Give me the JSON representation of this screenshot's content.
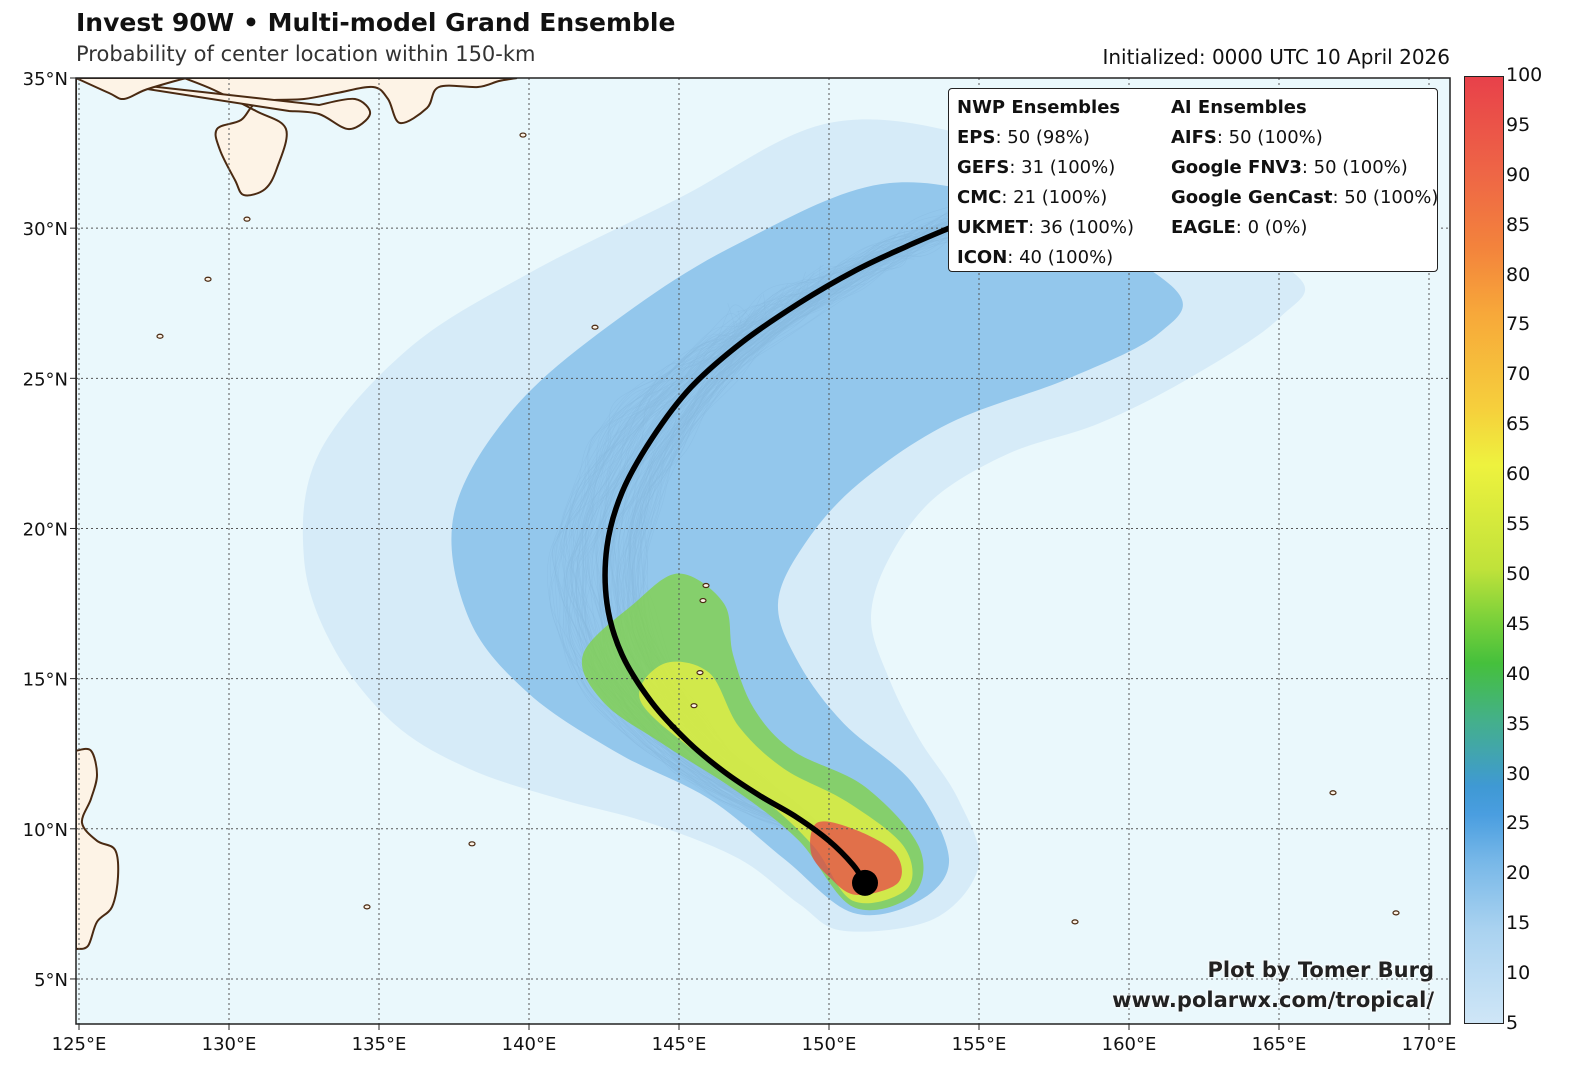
{
  "title": "Invest 90W • Multi-model Grand Ensemble",
  "subtitle": "Probability of center location within 150-km",
  "initialized": "Initialized: 0000 UTC 10 April 2026",
  "axes": {
    "lon_ticks": [
      "125°E",
      "130°E",
      "135°E",
      "140°E",
      "145°E",
      "150°E",
      "155°E",
      "160°E",
      "165°E",
      "170°E"
    ],
    "lat_ticks": [
      "35°N",
      "30°N",
      "25°N",
      "20°N",
      "15°N",
      "10°N",
      "5°N"
    ],
    "lon_range": [
      124.9,
      170.7
    ],
    "lat_range": [
      3.5,
      35.0
    ]
  },
  "legend": {
    "nwp_header": "NWP Ensembles",
    "ai_header": "AI Ensembles",
    "nwp": [
      {
        "model": "EPS",
        "detail": ": 50 (98%)"
      },
      {
        "model": "GEFS",
        "detail": ": 31 (100%)"
      },
      {
        "model": "CMC",
        "detail": ": 21 (100%)"
      },
      {
        "model": "UKMET",
        "detail": ": 36 (100%)"
      },
      {
        "model": "ICON",
        "detail": ": 40 (100%)"
      }
    ],
    "ai": [
      {
        "model": "AIFS",
        "detail": ": 50 (100%)"
      },
      {
        "model": "Google FNV3",
        "detail": ": 50 (100%)"
      },
      {
        "model": "Google GenCast",
        "detail": ": 50 (100%)"
      },
      {
        "model": "EAGLE",
        "detail": ": 0 (0%)"
      }
    ]
  },
  "credit": {
    "line1": "Plot by Tomer Burg",
    "line2": "www.polarwx.com/tropical/"
  },
  "colorbar": {
    "ticks": [
      "100",
      "95",
      "90",
      "85",
      "80",
      "75",
      "70",
      "65",
      "60",
      "55",
      "50",
      "45",
      "40",
      "35",
      "30",
      "25",
      "20",
      "15",
      "10",
      "5"
    ],
    "range": [
      5,
      100
    ]
  },
  "colors": {
    "ocean": "#eaf8fc",
    "land": "#fdf3e6",
    "coast": "#4a2a12",
    "track": "#000000"
  },
  "map_data": {
    "mean_track": [
      [
        151.2,
        8.2
      ],
      [
        150.8,
        8.8
      ],
      [
        150.0,
        9.6
      ],
      [
        148.9,
        10.4
      ],
      [
        147.7,
        11.1
      ],
      [
        146.5,
        11.9
      ],
      [
        145.3,
        12.9
      ],
      [
        144.1,
        14.2
      ],
      [
        143.1,
        15.8
      ],
      [
        142.6,
        17.5
      ],
      [
        142.6,
        19.4
      ],
      [
        143.1,
        21.2
      ],
      [
        144.1,
        23.0
      ],
      [
        145.4,
        24.7
      ],
      [
        147.1,
        26.2
      ],
      [
        149.0,
        27.5
      ],
      [
        150.9,
        28.6
      ],
      [
        152.6,
        29.4
      ],
      [
        154.0,
        30.0
      ]
    ],
    "probability_bands": [
      {
        "level": 10,
        "color": "#cfe6f7",
        "outline": [
          [
            150.5,
            6.6
          ],
          [
            153.5,
            7.0
          ],
          [
            155.0,
            8.8
          ],
          [
            154.3,
            11.0
          ],
          [
            153.0,
            13.0
          ],
          [
            152.0,
            15.0
          ],
          [
            151.4,
            17.0
          ],
          [
            152.0,
            19.0
          ],
          [
            153.5,
            21.0
          ],
          [
            156.0,
            22.5
          ],
          [
            159.0,
            23.5
          ],
          [
            162.0,
            25.0
          ],
          [
            165.0,
            27.0
          ],
          [
            165.5,
            28.5
          ],
          [
            160.0,
            31.0
          ],
          [
            155.0,
            33.0
          ],
          [
            150.0,
            33.5
          ],
          [
            145.0,
            31.0
          ],
          [
            140.0,
            28.5
          ],
          [
            136.0,
            26.0
          ],
          [
            133.0,
            22.5
          ],
          [
            132.5,
            19.0
          ],
          [
            133.5,
            16.0
          ],
          [
            135.5,
            13.5
          ],
          [
            138.0,
            12.0
          ],
          [
            141.0,
            11.0
          ],
          [
            144.0,
            10.2
          ],
          [
            147.0,
            9.0
          ],
          [
            149.0,
            7.5
          ]
        ]
      },
      {
        "level": 20,
        "color": "#78b8e8",
        "outline": [
          [
            150.8,
            7.2
          ],
          [
            153.0,
            7.6
          ],
          [
            154.0,
            9.0
          ],
          [
            152.8,
            11.5
          ],
          [
            150.5,
            13.5
          ],
          [
            149.0,
            15.5
          ],
          [
            148.3,
            17.5
          ],
          [
            149.2,
            19.5
          ],
          [
            151.0,
            21.5
          ],
          [
            154.0,
            23.5
          ],
          [
            158.0,
            25.0
          ],
          [
            161.0,
            26.5
          ],
          [
            161.5,
            28.0
          ],
          [
            157.0,
            30.5
          ],
          [
            152.0,
            31.5
          ],
          [
            147.0,
            29.5
          ],
          [
            143.0,
            27.0
          ],
          [
            139.5,
            24.0
          ],
          [
            137.5,
            20.5
          ],
          [
            138.0,
            17.0
          ],
          [
            140.0,
            14.5
          ],
          [
            143.0,
            12.5
          ],
          [
            146.0,
            11.0
          ],
          [
            148.5,
            9.0
          ]
        ]
      },
      {
        "level": 45,
        "color": "#7fd23a",
        "outline": [
          [
            150.8,
            7.4
          ],
          [
            152.8,
            7.8
          ],
          [
            153.0,
            9.4
          ],
          [
            151.2,
            11.4
          ],
          [
            148.8,
            12.6
          ],
          [
            147.5,
            14.0
          ],
          [
            146.8,
            15.8
          ],
          [
            146.5,
            17.5
          ],
          [
            145.0,
            18.5
          ],
          [
            143.5,
            17.5
          ],
          [
            141.8,
            15.8
          ],
          [
            142.5,
            14.2
          ],
          [
            144.5,
            12.8
          ],
          [
            147.0,
            11.2
          ],
          [
            149.0,
            9.6
          ]
        ]
      },
      {
        "level": 60,
        "color": "#eef23e",
        "outline": [
          [
            150.8,
            7.6
          ],
          [
            152.6,
            8.0
          ],
          [
            152.5,
            9.4
          ],
          [
            150.6,
            10.9
          ],
          [
            148.5,
            12.0
          ],
          [
            147.0,
            13.4
          ],
          [
            146.0,
            15.2
          ],
          [
            144.5,
            15.5
          ],
          [
            143.7,
            14.3
          ],
          [
            145.5,
            12.6
          ],
          [
            147.8,
            11.0
          ],
          [
            149.5,
            9.4
          ]
        ]
      },
      {
        "level": 90,
        "color": "#e8414a",
        "outline": [
          [
            150.9,
            7.8
          ],
          [
            152.3,
            8.2
          ],
          [
            152.2,
            9.2
          ],
          [
            150.8,
            10.0
          ],
          [
            149.6,
            10.2
          ],
          [
            149.4,
            9.2
          ],
          [
            150.0,
            8.4
          ]
        ]
      }
    ],
    "initial_position": [
      151.2,
      8.2
    ]
  }
}
